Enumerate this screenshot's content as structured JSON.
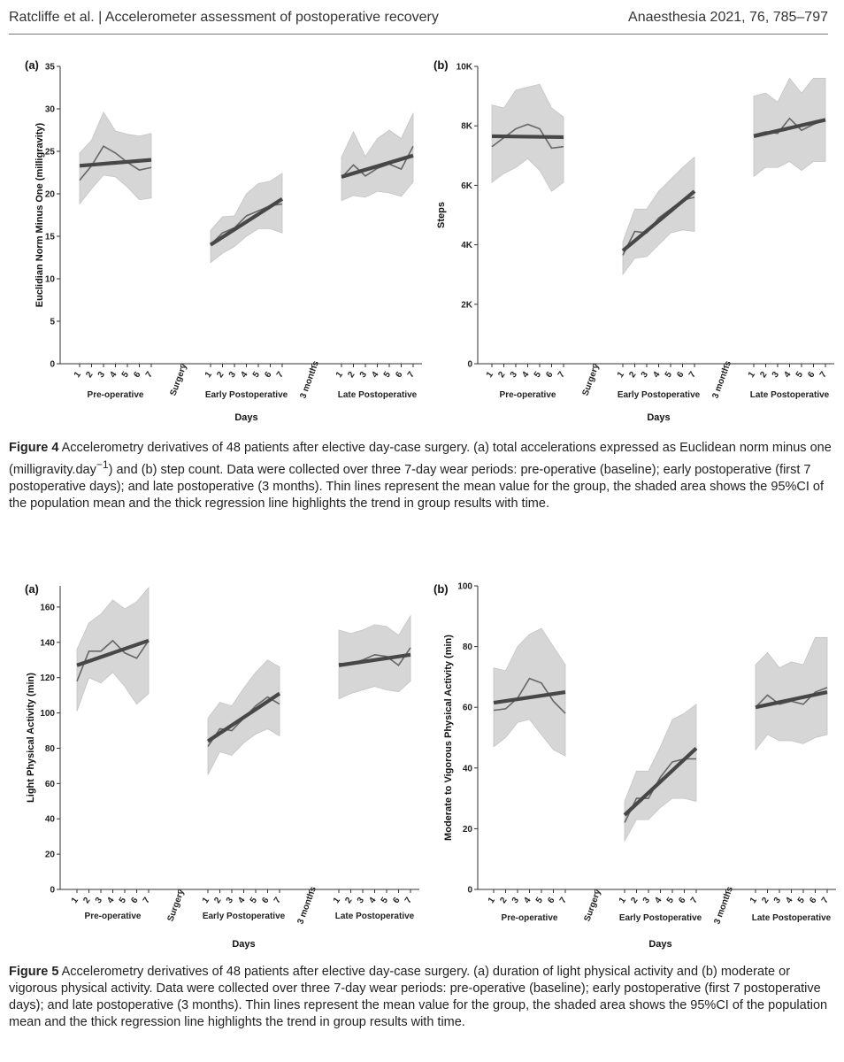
{
  "header": {
    "left": "Ratcliffe et al.  |  Accelerometer assessment of postoperative recovery",
    "right": "Anaesthesia 2021, 76, 785–797"
  },
  "figure4": {
    "caption_label": "Figure 4",
    "caption_text_1": "  Accelerometry derivatives of 48 patients after elective day-case surgery. (a) total accelerations expressed as Euclidean norm minus one (milligravity.day",
    "caption_sup": "−1",
    "caption_text_2": ") and (b) step count. Data were collected over three 7-day wear periods: pre-operative (baseline); early postoperative (first 7 postoperative days); and late postoperative (3  months). Thin lines represent the mean value for the group, the shaded area shows the 95%CI of the population mean and the thick regression line highlights the trend in group results with time."
  },
  "figure5": {
    "caption_label": "Figure 5",
    "caption_text": "  Accelerometry derivatives of 48 patients after elective day-case surgery. (a) duration of light physical activity and (b) moderate or vigorous physical activity. Data were collected over three 7-day wear periods: pre-operative (baseline); early postoperative (first 7 postoperative days); and late postoperative (3  months). Thin lines represent the mean value for the group, the shaded area shows the 95%CI of the population mean and the thick regression line highlights the trend in group results with time."
  },
  "chart_data": [
    {
      "panel": "(a)",
      "type": "line",
      "xlabel": "Days",
      "ylabel": "Euclidian Norm Minus One (milligravity)",
      "ylim": [
        0,
        35
      ],
      "yticks": [
        "0",
        "5",
        "10",
        "15",
        "20",
        "25",
        "30",
        "35"
      ],
      "ytick_values": [
        0,
        5,
        10,
        15,
        20,
        25,
        30,
        35
      ],
      "day_labels": [
        "1",
        "2",
        "3",
        "4",
        "5",
        "6",
        "7"
      ],
      "separators": [
        "Surgery",
        "3 months"
      ],
      "groups": [
        {
          "name": "Pre-operative",
          "mean": [
            21.6,
            23.3,
            25.6,
            24.8,
            23.7,
            22.8,
            23.1
          ],
          "ci_low": [
            18.8,
            20.6,
            22.2,
            22.0,
            20.8,
            19.3,
            19.5
          ],
          "ci_high": [
            24.8,
            26.3,
            29.6,
            27.4,
            27.0,
            26.8,
            27.1
          ],
          "trend": [
            23.3,
            24.0
          ]
        },
        {
          "name": "Early Postoperative",
          "mean": [
            14.0,
            15.4,
            16.0,
            17.4,
            18.0,
            18.6,
            18.8
          ],
          "ci_low": [
            11.9,
            13.0,
            13.8,
            15.0,
            15.9,
            15.9,
            15.4
          ],
          "ci_high": [
            15.7,
            17.3,
            17.4,
            20.0,
            21.2,
            21.5,
            22.4
          ],
          "trend": [
            14.0,
            19.4
          ]
        },
        {
          "name": "Late Postoperative",
          "mean": [
            21.9,
            23.4,
            22.1,
            23.0,
            23.5,
            22.9,
            25.6
          ],
          "ci_low": [
            19.2,
            19.8,
            19.6,
            20.3,
            20.1,
            19.7,
            21.4
          ],
          "ci_high": [
            24.3,
            27.3,
            24.4,
            26.5,
            27.5,
            26.5,
            29.5
          ],
          "trend": [
            22.0,
            24.5
          ]
        }
      ]
    },
    {
      "panel": "(b)",
      "type": "line",
      "xlabel": "Days",
      "ylabel": "Steps",
      "ylim": [
        0,
        10000
      ],
      "yticks": [
        "0",
        "2K",
        "4K",
        "6K",
        "8K",
        "10K"
      ],
      "ytick_values": [
        0,
        2000,
        4000,
        6000,
        8000,
        10000
      ],
      "day_labels": [
        "1",
        "2",
        "3",
        "4",
        "5",
        "6",
        "7"
      ],
      "separators": [
        "Surgery",
        "3 months"
      ],
      "groups": [
        {
          "name": "Pre-operative",
          "mean": [
            7300,
            7600,
            7900,
            8050,
            7900,
            7250,
            7300
          ],
          "ci_low": [
            6100,
            6400,
            6600,
            6900,
            6500,
            5800,
            6100
          ],
          "ci_high": [
            8700,
            8600,
            9200,
            9300,
            9400,
            8600,
            8300
          ],
          "trend": [
            7650,
            7620
          ]
        },
        {
          "name": "Early Postoperative",
          "mean": [
            3650,
            4450,
            4400,
            4900,
            5200,
            5500,
            5600
          ],
          "ci_low": [
            3000,
            3550,
            3600,
            4000,
            4400,
            4500,
            4450
          ],
          "ci_high": [
            4100,
            5200,
            5200,
            5800,
            6200,
            6600,
            6950
          ],
          "trend": [
            3800,
            5800
          ]
        },
        {
          "name": "Late Postoperative",
          "mean": [
            7700,
            7800,
            7750,
            8250,
            7850,
            8050,
            8200
          ],
          "ci_low": [
            6300,
            6600,
            6600,
            6800,
            6500,
            6800,
            6800
          ],
          "ci_high": [
            9000,
            9100,
            8800,
            9600,
            9100,
            9600,
            9600
          ],
          "trend": [
            7650,
            8200
          ]
        }
      ]
    },
    {
      "panel": "(a)",
      "type": "line",
      "xlabel": "Days",
      "ylabel": "Light Physical Activity (min)",
      "ylim": [
        0,
        172
      ],
      "yticks": [
        "0",
        "20",
        "40",
        "60",
        "80",
        "100",
        "120",
        "140",
        "160"
      ],
      "ytick_values": [
        0,
        20,
        40,
        60,
        80,
        100,
        120,
        140,
        160
      ],
      "day_labels": [
        "1",
        "2",
        "3",
        "4",
        "5",
        "6",
        "7"
      ],
      "separators": [
        "Surgery",
        "3 months"
      ],
      "groups": [
        {
          "name": "Pre-operative",
          "mean": [
            118,
            135,
            135,
            141,
            134,
            131,
            141
          ],
          "ci_low": [
            101,
            120,
            117,
            123,
            115,
            105,
            111
          ],
          "ci_high": [
            136,
            151,
            156,
            164,
            159,
            163,
            171
          ],
          "trend": [
            127,
            141
          ]
        },
        {
          "name": "Early Postoperative",
          "mean": [
            81,
            91,
            90,
            97,
            104,
            109,
            105
          ],
          "ci_low": [
            65,
            78,
            76,
            83,
            88,
            91,
            87
          ],
          "ci_high": [
            97,
            106,
            104,
            114,
            123,
            130,
            126
          ],
          "trend": [
            84,
            111
          ]
        },
        {
          "name": "Late Postoperative",
          "mean": [
            128,
            128,
            130,
            133,
            132,
            127,
            137
          ],
          "ci_low": [
            108,
            111,
            113,
            115,
            113,
            112,
            118
          ],
          "ci_high": [
            147,
            145,
            147,
            150,
            149,
            144,
            155
          ],
          "trend": [
            127,
            133
          ]
        }
      ]
    },
    {
      "panel": "(b)",
      "type": "line",
      "xlabel": "Days",
      "ylabel": "Moderate to Vigorous Physical Activity (min)",
      "ylim": [
        0,
        100
      ],
      "yticks": [
        "0",
        "20",
        "40",
        "60",
        "80",
        "100"
      ],
      "ytick_values": [
        0,
        20,
        40,
        60,
        80,
        100
      ],
      "day_labels": [
        "1",
        "2",
        "3",
        "4",
        "5",
        "6",
        "7"
      ],
      "separators": [
        "Surgery",
        "3 months"
      ],
      "groups": [
        {
          "name": "Pre-operative",
          "mean": [
            59,
            59.5,
            63,
            69.5,
            68,
            62,
            58
          ],
          "ci_low": [
            47,
            50,
            55,
            56,
            51,
            46,
            44
          ],
          "ci_high": [
            73,
            72,
            80,
            84,
            86,
            80,
            74
          ],
          "trend": [
            61.5,
            65
          ]
        },
        {
          "name": "Early Postoperative",
          "mean": [
            22,
            30,
            30,
            37,
            42,
            43,
            43
          ],
          "ci_low": [
            16,
            23,
            23,
            27,
            30,
            30,
            29
          ],
          "ci_high": [
            29,
            39,
            39,
            47,
            56,
            58,
            61
          ],
          "trend": [
            24.5,
            46.5
          ]
        },
        {
          "name": "Late Postoperative",
          "mean": [
            60,
            64,
            61,
            62,
            61,
            65,
            66.5
          ],
          "ci_low": [
            46,
            51,
            49,
            49,
            48,
            50,
            51
          ],
          "ci_high": [
            74,
            78,
            73,
            75,
            74,
            83,
            83
          ],
          "trend": [
            60,
            65
          ]
        }
      ]
    }
  ]
}
